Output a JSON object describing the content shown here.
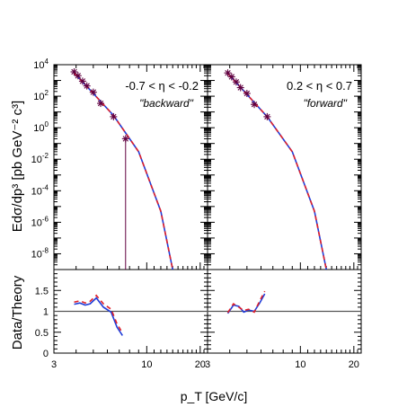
{
  "chart_data": {
    "type": "line",
    "xlabel": "p_T  [GeV/c]",
    "ylabel_top": "Edσ/dp³  [pb GeV⁻² c³]",
    "ylabel_bottom": "Data/Theory",
    "x_log": true,
    "xlim": [
      3,
      22
    ],
    "x_ticks": [
      3,
      10,
      20
    ],
    "top_ylim": [
      1e-09,
      10000.0
    ],
    "top_y_log": true,
    "top_y_ticks": [
      {
        "label_base": "10",
        "label_exp": "4",
        "value": 4
      },
      {
        "label_base": "10",
        "label_exp": "2",
        "value": 2
      },
      {
        "label_base": "10",
        "label_exp": "0",
        "value": 0
      },
      {
        "label_base": "10",
        "label_exp": "-2",
        "value": -2
      },
      {
        "label_base": "10",
        "label_exp": "-4",
        "value": -4
      },
      {
        "label_base": "10",
        "label_exp": "-6",
        "value": -6
      },
      {
        "label_base": "10",
        "label_exp": "-8",
        "value": -8
      }
    ],
    "ratio_ylim": [
      0,
      2
    ],
    "ratio_y_ticks": [
      "0",
      "0.5",
      "1",
      "1.5"
    ],
    "ratio_reference": 1,
    "series_colors": {
      "data": "#600040",
      "theory_a": "#1f3cd8",
      "theory_b": "#e0202a",
      "ratio_line": "#555555"
    },
    "panels": [
      {
        "label": "-0.7 < η < -0.2",
        "sublabel": "\"backward\"",
        "data_points": [
          {
            "x": 3.9,
            "y": 3500.0
          },
          {
            "x": 4.1,
            "y": 2000.0
          },
          {
            "x": 4.35,
            "y": 900.0
          },
          {
            "x": 4.6,
            "y": 450.0
          },
          {
            "x": 5.0,
            "y": 180.0
          },
          {
            "x": 5.5,
            "y": 35.0
          },
          {
            "x": 6.5,
            "y": 5.0
          },
          {
            "x": 7.6,
            "y": 0.2
          }
        ],
        "data_error_lows": [
          {
            "x": 7.6,
            "y_low": 5e-10
          }
        ],
        "theory_curve": [
          {
            "x": 3.9,
            "y": 3000.0
          },
          {
            "x": 5.0,
            "y": 150.0
          },
          {
            "x": 6.5,
            "y": 6.0
          },
          {
            "x": 9.0,
            "y": 0.03
          },
          {
            "x": 12.0,
            "y": 5e-06
          },
          {
            "x": 14.0,
            "y": 1e-09
          }
        ],
        "ratio_blue": [
          {
            "x": 3.9,
            "y": 1.17
          },
          {
            "x": 4.2,
            "y": 1.2
          },
          {
            "x": 4.5,
            "y": 1.15
          },
          {
            "x": 4.8,
            "y": 1.18
          },
          {
            "x": 5.2,
            "y": 1.32
          },
          {
            "x": 5.7,
            "y": 1.1
          },
          {
            "x": 6.3,
            "y": 0.98
          },
          {
            "x": 6.8,
            "y": 0.62
          },
          {
            "x": 7.3,
            "y": 0.42
          }
        ],
        "ratio_red": [
          {
            "x": 3.9,
            "y": 1.22
          },
          {
            "x": 4.2,
            "y": 1.25
          },
          {
            "x": 4.5,
            "y": 1.2
          },
          {
            "x": 4.8,
            "y": 1.24
          },
          {
            "x": 5.2,
            "y": 1.38
          },
          {
            "x": 5.7,
            "y": 1.18
          },
          {
            "x": 6.3,
            "y": 1.05
          },
          {
            "x": 6.8,
            "y": 0.7
          },
          {
            "x": 7.3,
            "y": 0.48
          }
        ]
      },
      {
        "label": "0.2 < η < 0.7",
        "sublabel": "\"forward\"",
        "data_points": [
          {
            "x": 3.9,
            "y": 3000.0
          },
          {
            "x": 4.1,
            "y": 1700.0
          },
          {
            "x": 4.35,
            "y": 800.0
          },
          {
            "x": 4.6,
            "y": 350.0
          },
          {
            "x": 5.0,
            "y": 150.0
          },
          {
            "x": 5.5,
            "y": 30.0
          },
          {
            "x": 6.5,
            "y": 5.0
          }
        ],
        "data_error_lows": [],
        "theory_curve": [
          {
            "x": 3.9,
            "y": 2800.0
          },
          {
            "x": 5.0,
            "y": 130.0
          },
          {
            "x": 6.5,
            "y": 5.0
          },
          {
            "x": 9.0,
            "y": 0.03
          },
          {
            "x": 12.0,
            "y": 5e-06
          },
          {
            "x": 14.0,
            "y": 1e-09
          }
        ],
        "ratio_blue": [
          {
            "x": 3.9,
            "y": 0.95
          },
          {
            "x": 4.2,
            "y": 1.15
          },
          {
            "x": 4.5,
            "y": 1.12
          },
          {
            "x": 4.8,
            "y": 0.98
          },
          {
            "x": 5.1,
            "y": 1.03
          },
          {
            "x": 5.5,
            "y": 1.0
          },
          {
            "x": 5.9,
            "y": 1.2
          },
          {
            "x": 6.3,
            "y": 1.42
          }
        ],
        "ratio_red": [
          {
            "x": 3.9,
            "y": 0.97
          },
          {
            "x": 4.2,
            "y": 1.18
          },
          {
            "x": 4.5,
            "y": 1.1
          },
          {
            "x": 4.8,
            "y": 1.02
          },
          {
            "x": 5.1,
            "y": 1.05
          },
          {
            "x": 5.5,
            "y": 0.98
          },
          {
            "x": 5.9,
            "y": 1.25
          },
          {
            "x": 6.3,
            "y": 1.48
          }
        ]
      }
    ]
  }
}
